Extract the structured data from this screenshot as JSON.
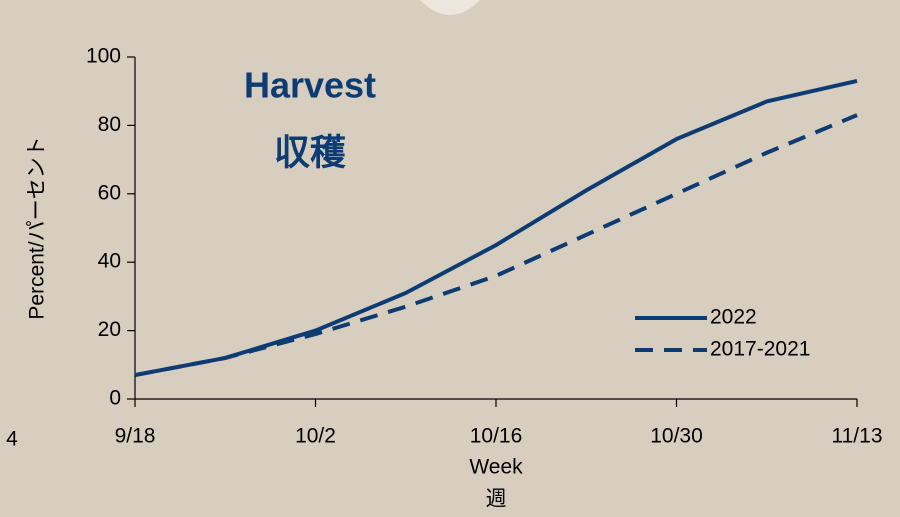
{
  "chart_data": {
    "type": "line",
    "title": "Harvest",
    "subtitle": "収穫",
    "y_label": "Percent/パーセント",
    "x_label": "Week",
    "x_label_sub": "週",
    "page_number": "4",
    "categories": [
      "9/18",
      null,
      "10/2",
      null,
      "10/16",
      null,
      "10/30",
      null,
      "11/13"
    ],
    "series": [
      {
        "name": "2022",
        "color": "#0d3b73",
        "dashed": false,
        "values": [
          7,
          12,
          20,
          31,
          45,
          61,
          76,
          87,
          93
        ]
      },
      {
        "name": "2017-2021",
        "color": "#0d3b73",
        "dashed": true,
        "values": [
          7,
          12,
          19,
          27,
          36,
          48,
          60,
          72,
          83
        ]
      }
    ],
    "ylim": [
      0,
      100
    ],
    "yticks": [
      0,
      20,
      40,
      60,
      80,
      100
    ],
    "grid": false,
    "legend": "lower right"
  }
}
